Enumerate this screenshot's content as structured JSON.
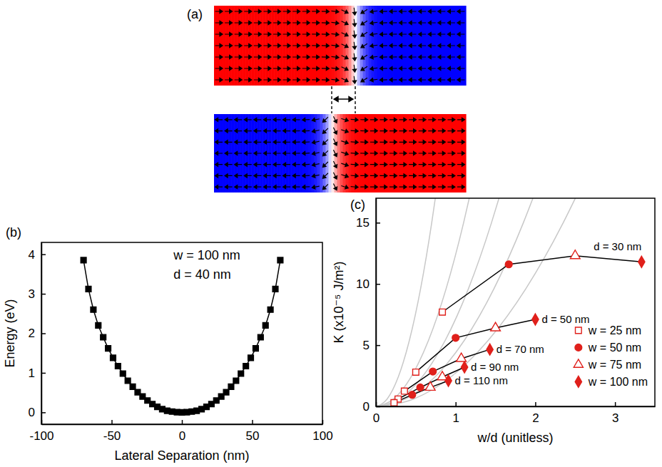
{
  "diagram": {
    "label": "(a)"
  },
  "chart_data": [
    {
      "type": "line",
      "title": "(b)",
      "xlabel": "Lateral Separation (nm)",
      "ylabel": "Energy (eV)",
      "annotations": [
        "w = 100 nm",
        "d = 40 nm"
      ],
      "xlim": [
        -100,
        100
      ],
      "xticks": [
        -100,
        -50,
        0,
        50,
        100
      ],
      "ylim": [
        -0.3,
        4.3
      ],
      "yticks": [
        0,
        1,
        2,
        3,
        4
      ],
      "grid": false,
      "series": [
        {
          "color": "#000000",
          "marker": "square",
          "line_style": "solid",
          "x": [
            -70,
            -66.5,
            -63,
            -59.5,
            -56,
            -52.5,
            -49,
            -45.5,
            -42,
            -38.5,
            -35,
            -31.5,
            -28,
            -24.5,
            -21,
            -17.5,
            -14,
            -10.5,
            -7,
            -3.5,
            0,
            3.5,
            7,
            10.5,
            14,
            17.5,
            21,
            24.5,
            28,
            31.5,
            35,
            38.5,
            42,
            45.5,
            49,
            52.5,
            56,
            59.5,
            63,
            66.5,
            70
          ],
          "values": [
            3.85,
            3.12,
            2.6,
            2.2,
            1.9,
            1.62,
            1.38,
            1.17,
            0.98,
            0.8,
            0.65,
            0.51,
            0.4,
            0.3,
            0.21,
            0.14,
            0.08,
            0.04,
            0.02,
            0.005,
            0,
            0.005,
            0.02,
            0.04,
            0.08,
            0.14,
            0.21,
            0.3,
            0.4,
            0.51,
            0.65,
            0.8,
            0.98,
            1.17,
            1.38,
            1.62,
            1.9,
            2.2,
            2.6,
            3.12,
            3.85
          ]
        }
      ]
    },
    {
      "type": "line",
      "title": "(c)",
      "xlabel": "w/d (unitless)",
      "ylabel": "K (x10⁻⁵ J/m²)",
      "xlim": [
        0,
        3.5
      ],
      "xticks": [
        0,
        1,
        2,
        3
      ],
      "ylim": [
        0,
        17
      ],
      "yticks": [
        0,
        5,
        10,
        15
      ],
      "grid": false,
      "legend": "lower right",
      "series": [
        {
          "type": "line",
          "color": "#c8c8c8",
          "marker": "none",
          "line_style": "smooth",
          "x": [
            0,
            0.14,
            0.28,
            0.42,
            0.56,
            0.7,
            0.745
          ],
          "values": [
            0,
            0.6,
            2.4,
            5.4,
            9.6,
            15,
            17
          ]
        },
        {
          "type": "line",
          "color": "#c8c8c8",
          "marker": "none",
          "line_style": "smooth",
          "x": [
            0,
            0.22,
            0.44,
            0.66,
            0.88,
            1.1,
            1.171
          ],
          "values": [
            0,
            0.6,
            2.4,
            5.4,
            9.6,
            15,
            17
          ]
        },
        {
          "type": "line",
          "color": "#c8c8c8",
          "marker": "none",
          "line_style": "smooth",
          "x": [
            0,
            0.29,
            0.58,
            0.87,
            1.16,
            1.45,
            1.544
          ],
          "values": [
            0,
            0.6,
            2.4,
            5.4,
            9.6,
            15,
            17
          ]
        },
        {
          "type": "line",
          "color": "#c8c8c8",
          "marker": "none",
          "line_style": "smooth",
          "x": [
            0,
            0.37,
            0.74,
            1.11,
            1.48,
            1.85,
            1.97
          ],
          "values": [
            0,
            0.6,
            2.4,
            5.4,
            9.6,
            15,
            17
          ]
        },
        {
          "type": "line",
          "color": "#c8c8c8",
          "marker": "none",
          "line_style": "smooth",
          "x": [
            0,
            0.47,
            0.94,
            1.41,
            1.88,
            2.35,
            2.502
          ],
          "values": [
            0,
            0.6,
            2.4,
            5.4,
            9.6,
            15,
            17
          ]
        },
        {
          "type": "line",
          "name": "d = 30 nm",
          "color": "#000000",
          "marker": "none",
          "line_style": "solid",
          "x": [
            0.833,
            1.667,
            2.5,
            3.333
          ],
          "values": [
            7.7,
            11.6,
            12.3,
            11.8
          ]
        },
        {
          "type": "line",
          "name": "d = 50 nm",
          "color": "#000000",
          "marker": "none",
          "line_style": "solid",
          "x": [
            0.5,
            1.0,
            1.5,
            2.0
          ],
          "values": [
            2.8,
            5.6,
            6.4,
            7.1
          ]
        },
        {
          "type": "line",
          "name": "d = 70 nm",
          "color": "#000000",
          "marker": "none",
          "line_style": "solid",
          "x": [
            0.357,
            0.714,
            1.071,
            1.429
          ],
          "values": [
            1.25,
            2.85,
            3.9,
            4.65
          ]
        },
        {
          "type": "line",
          "name": "d = 90 nm",
          "color": "#000000",
          "marker": "none",
          "line_style": "solid",
          "x": [
            0.278,
            0.556,
            0.833,
            1.111
          ],
          "values": [
            0.6,
            1.55,
            2.4,
            3.2
          ]
        },
        {
          "type": "line",
          "name": "d = 110 nm",
          "color": "#000000",
          "marker": "none",
          "line_style": "solid",
          "x": [
            0.227,
            0.455,
            0.682,
            0.909
          ],
          "values": [
            0.3,
            0.95,
            1.55,
            2.1
          ]
        },
        {
          "type": "scatter",
          "name": "w = 25 nm",
          "color": "#e0201b",
          "marker": "square-open",
          "x": [
            0.833,
            0.5,
            0.357,
            0.278,
            0.227
          ],
          "values": [
            7.7,
            2.8,
            1.25,
            0.6,
            0.3
          ]
        },
        {
          "type": "scatter",
          "name": "w = 50 nm",
          "color": "#e0201b",
          "marker": "circle",
          "x": [
            1.667,
            1.0,
            0.714,
            0.556,
            0.455
          ],
          "values": [
            11.6,
            5.6,
            2.85,
            1.55,
            0.95
          ]
        },
        {
          "type": "scatter",
          "name": "w = 75 nm",
          "color": "#e0201b",
          "marker": "triangle-open",
          "x": [
            2.5,
            1.5,
            1.071,
            0.833,
            0.682
          ],
          "values": [
            12.3,
            6.4,
            3.9,
            2.4,
            1.55
          ]
        },
        {
          "type": "scatter",
          "name": "w = 100 nm",
          "color": "#e0201b",
          "marker": "diamond",
          "x": [
            3.333,
            2.0,
            1.429,
            1.111,
            0.909
          ],
          "values": [
            11.8,
            7.1,
            4.65,
            3.2,
            2.1
          ]
        }
      ]
    }
  ]
}
